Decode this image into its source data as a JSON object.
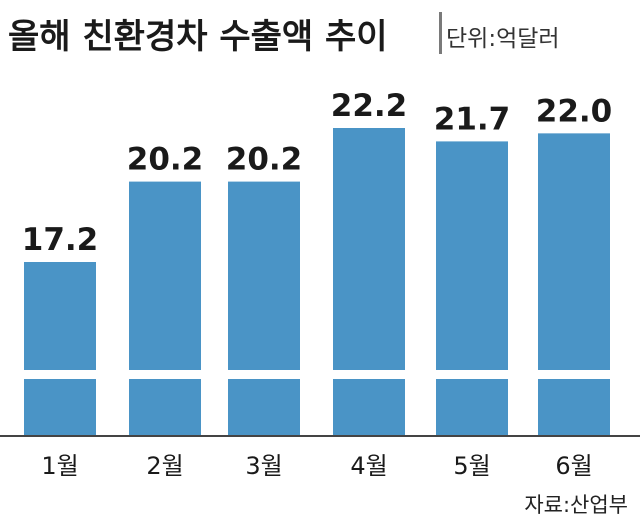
{
  "chart_data": {
    "type": "bar",
    "title": "올해 친환경차 수출액 추이",
    "unit": "단위:억달러",
    "source": "자료:산업부",
    "categories": [
      "1월",
      "2월",
      "3월",
      "4월",
      "5월",
      "6월"
    ],
    "values": [
      17.2,
      20.2,
      20.2,
      22.2,
      21.7,
      22.0
    ],
    "value_labels": [
      "17.2",
      "20.2",
      "20.2",
      "22.2",
      "21.7",
      "22.0"
    ],
    "axis_break": true,
    "bar_color": "#4a94c6",
    "title_bar_color": "#7a7a7a"
  }
}
